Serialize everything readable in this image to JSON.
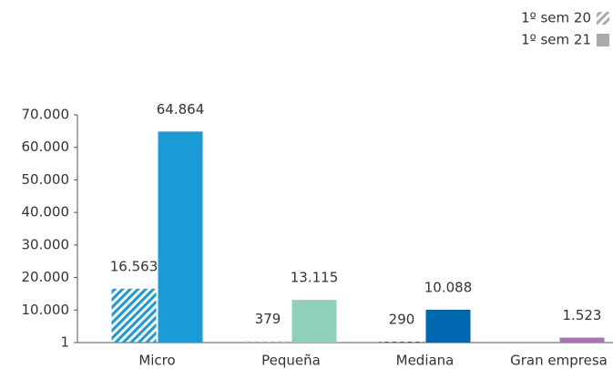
{
  "chart_data": {
    "type": "bar",
    "categories": [
      "Micro",
      "Pequeña",
      "Mediana",
      "Gran empresa"
    ],
    "series": [
      {
        "name": "1º sem 20",
        "hatched": true,
        "colors": [
          "#1a9bd7",
          "#8fd0bd",
          "#0067b1",
          "#a872b6"
        ],
        "legend_color": "#aaaaaa",
        "values": [
          16563,
          379,
          290,
          null
        ],
        "value_labels": [
          "16.563",
          "379",
          "290",
          null
        ]
      },
      {
        "name": "1º sem 21",
        "hatched": false,
        "colors": [
          "#1a9bd7",
          "#8fd0bd",
          "#0067b1",
          "#a872b6"
        ],
        "legend_color": "#aaaaaa",
        "values": [
          64864,
          13115,
          10088,
          1523
        ],
        "value_labels": [
          "64.864",
          "13.115",
          "10.088",
          "1.523"
        ]
      }
    ],
    "ylim": [
      1,
      70000
    ],
    "yticks": [
      1,
      {
        "value": 10000,
        "label": "10.000"
      },
      {
        "value": 20000,
        "label": "20.000"
      },
      {
        "value": 30000,
        "label": "30.000"
      },
      {
        "value": 40000,
        "label": "40.000"
      },
      {
        "value": 50000,
        "label": "50.000"
      },
      {
        "value": 60000,
        "label": "60.000"
      },
      {
        "value": 70000,
        "label": "70.000"
      }
    ],
    "legend": "top-right",
    "grid": false
  }
}
